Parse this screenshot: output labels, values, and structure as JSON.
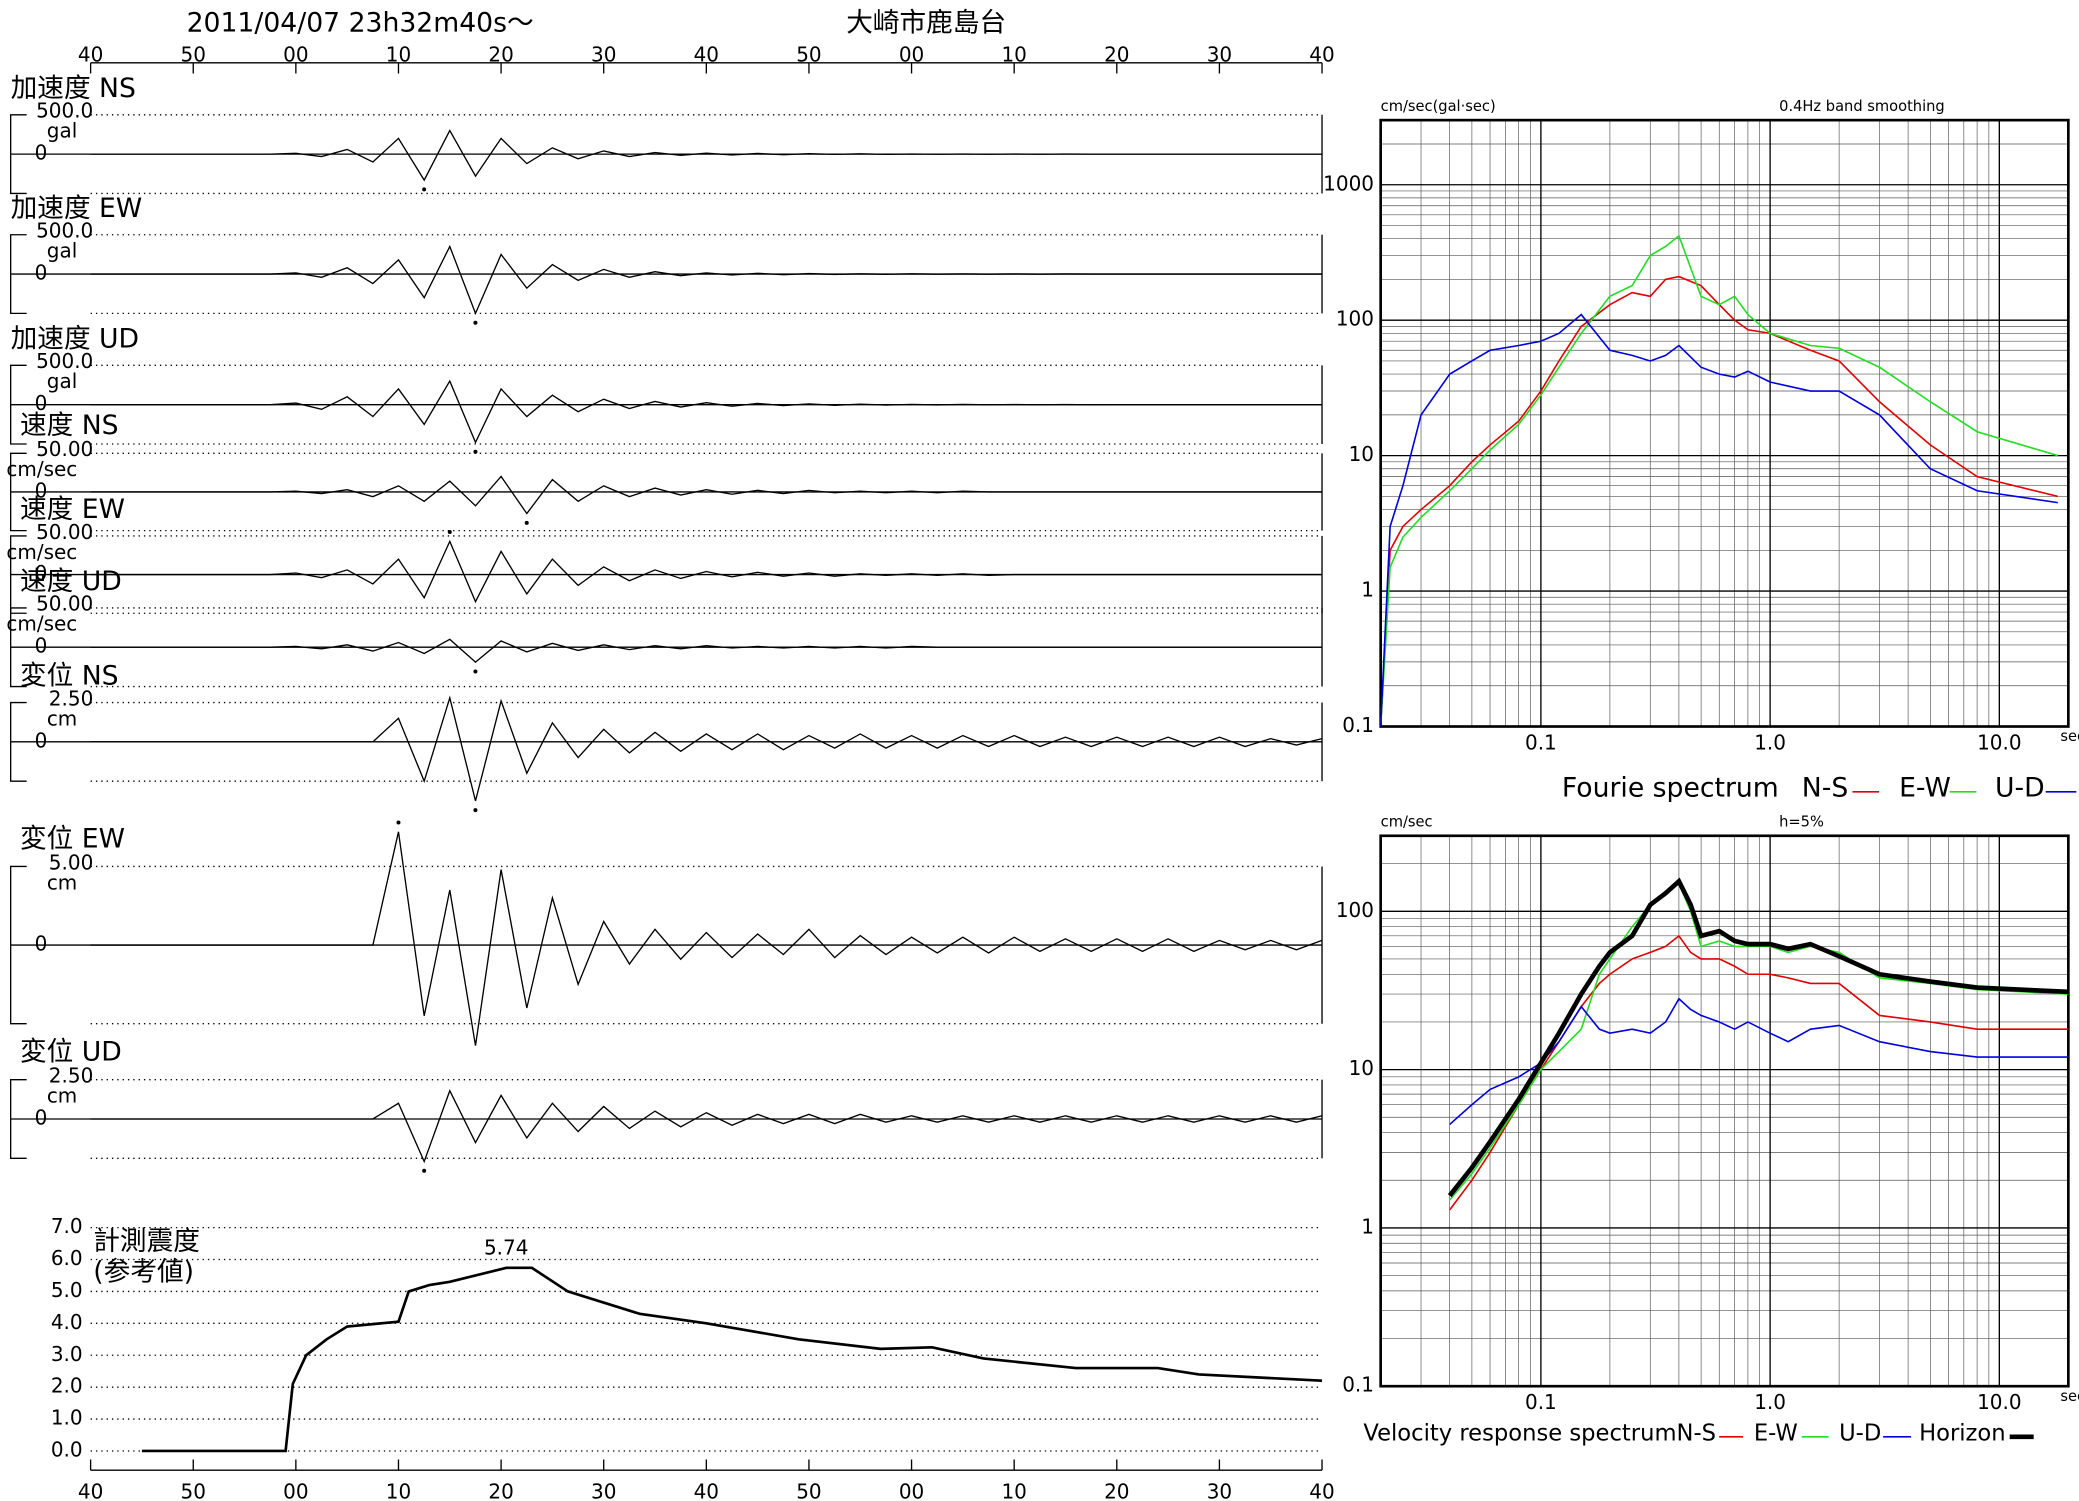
{
  "header": {
    "datetime": "2011/04/07  23h32m40s～",
    "station": "大崎市鹿島台"
  },
  "chart_data": [
    {
      "type": "waveform",
      "color": "#000000",
      "xlim": [
        0,
        120
      ],
      "xticks": [
        {
          "value": 0,
          "label": "40"
        },
        {
          "value": 10,
          "label": "50"
        },
        {
          "value": 20,
          "label": "00"
        },
        {
          "value": 30,
          "label": "10"
        },
        {
          "value": 40,
          "label": "20"
        },
        {
          "value": 50,
          "label": "30"
        },
        {
          "value": 60,
          "label": "40"
        },
        {
          "value": 70,
          "label": "50"
        },
        {
          "value": 80,
          "label": "00"
        },
        {
          "value": 90,
          "label": "10"
        },
        {
          "value": 100,
          "label": "20"
        },
        {
          "value": 110,
          "label": "30"
        },
        {
          "value": 120,
          "label": "40"
        }
      ],
      "x": [
        0,
        2.5,
        5,
        7.5,
        10,
        12.5,
        15,
        17.5,
        20,
        22.5,
        25,
        27.5,
        30,
        32.5,
        35,
        37.5,
        40,
        42.5,
        45,
        47.5,
        50,
        52.5,
        55,
        57.5,
        60,
        62.5,
        65,
        67.5,
        70,
        72.5,
        75,
        77.5,
        80,
        82.5,
        85,
        87.5,
        90,
        92.5,
        95,
        97.5,
        100,
        102.5,
        105,
        107.5,
        110,
        112.5,
        115,
        117.5,
        120
      ],
      "series": [
        {
          "name": "加速度 NS",
          "unit": "gal",
          "ylim": [
            -500,
            500
          ],
          "yticks": [
            0,
            {
              "value": 500,
              "label": "500.0"
            }
          ],
          "values": [
            0,
            0,
            0,
            0,
            0,
            0,
            0,
            0,
            10,
            -30,
            60,
            -100,
            200,
            -330,
            300,
            -280,
            200,
            -120,
            80,
            -60,
            40,
            -30,
            20,
            -15,
            12,
            -10,
            8,
            -6,
            5,
            -4,
            3,
            -3,
            2,
            -2,
            2,
            -1,
            1,
            -1,
            1,
            0,
            0,
            0,
            0,
            0,
            0,
            0,
            0,
            0,
            0
          ]
        },
        {
          "name": "加速度 EW",
          "unit": "gal",
          "ylim": [
            -500,
            500
          ],
          "yticks": [
            0,
            {
              "value": 500,
              "label": "500.0"
            }
          ],
          "values": [
            0,
            0,
            0,
            0,
            0,
            0,
            0,
            0,
            15,
            -40,
            80,
            -120,
            180,
            -300,
            350,
            -500,
            250,
            -180,
            120,
            -80,
            60,
            -40,
            30,
            -20,
            15,
            -12,
            10,
            -8,
            6,
            -5,
            4,
            -3,
            3,
            -2,
            2,
            -2,
            1,
            -1,
            1,
            0,
            0,
            0,
            0,
            0,
            0,
            0,
            0,
            0,
            0
          ]
        },
        {
          "name": "加速度 UD",
          "unit": "gal",
          "ylim": [
            -500,
            500
          ],
          "yticks": [
            0,
            {
              "value": 500,
              "label": "500.0"
            }
          ],
          "values": [
            0,
            0,
            0,
            0,
            0,
            0,
            0,
            0,
            20,
            -60,
            100,
            -150,
            200,
            -250,
            300,
            -480,
            200,
            -150,
            120,
            -90,
            70,
            -50,
            40,
            -30,
            25,
            -20,
            15,
            -12,
            10,
            -8,
            6,
            -5,
            4,
            -3,
            3,
            -2,
            2,
            -1,
            1,
            -1,
            0,
            0,
            0,
            0,
            0,
            0,
            0,
            0,
            0
          ]
        },
        {
          "name": "速度 NS",
          "unit": "cm/sec",
          "ylim": [
            -50,
            50
          ],
          "yticks": [
            0,
            {
              "value": 50,
              "label": "50.00"
            }
          ],
          "values": [
            0,
            0,
            0,
            0,
            0,
            0,
            0,
            0,
            1,
            -2,
            3,
            -6,
            8,
            -12,
            14,
            -18,
            20,
            -28,
            16,
            -12,
            8,
            -6,
            5,
            -4,
            3,
            -3,
            2,
            -2,
            2,
            -1,
            1,
            -1,
            1,
            -1,
            1,
            0,
            0,
            0,
            0,
            0,
            0,
            0,
            0,
            0,
            0,
            0,
            0,
            0,
            0
          ]
        },
        {
          "name": "速度 EW",
          "unit": "cm/sec",
          "ylim": [
            -50,
            50
          ],
          "yticks": [
            0,
            {
              "value": 50,
              "label": "50.00"
            }
          ],
          "values": [
            0,
            0,
            0,
            0,
            0,
            0,
            0,
            0,
            2,
            -4,
            6,
            -12,
            20,
            -30,
            43,
            -35,
            30,
            -25,
            20,
            -14,
            10,
            -8,
            6,
            -5,
            4,
            -3,
            3,
            -2,
            2,
            -2,
            1,
            -1,
            1,
            -1,
            1,
            -1,
            0,
            0,
            0,
            0,
            0,
            0,
            0,
            0,
            0,
            0,
            0,
            0,
            0
          ]
        },
        {
          "name": "速度 UD",
          "unit": "cm/sec",
          "ylim": [
            -50,
            50
          ],
          "yticks": [
            0,
            {
              "value": 50,
              "label": "50.00"
            }
          ],
          "values": [
            0,
            0,
            0,
            0,
            0,
            0,
            0,
            0,
            1,
            -2,
            3,
            -5,
            6,
            -8,
            10,
            -19,
            8,
            -6,
            5,
            -4,
            3,
            -3,
            2,
            -2,
            2,
            -1,
            1,
            -1,
            1,
            -1,
            1,
            -1,
            1,
            0,
            0,
            0,
            0,
            0,
            0,
            0,
            0,
            0,
            0,
            0,
            0,
            0,
            0,
            0,
            0
          ]
        },
        {
          "name": "変位 NS",
          "unit": "cm",
          "ylim": [
            -2.5,
            2.5
          ],
          "yticks": [
            0,
            {
              "value": 2.5,
              "label": "2.50"
            }
          ],
          "values": [
            0,
            0,
            0,
            0,
            0,
            0,
            0,
            0,
            0,
            0,
            0,
            0,
            1.5,
            -2.5,
            2.8,
            -3.75,
            2.6,
            -2.0,
            1.2,
            -1.0,
            0.8,
            -0.7,
            0.6,
            -0.6,
            0.5,
            -0.5,
            0.5,
            -0.5,
            0.4,
            -0.4,
            0.5,
            -0.4,
            0.4,
            -0.4,
            0.4,
            -0.3,
            0.4,
            -0.3,
            0.3,
            -0.3,
            0.3,
            -0.3,
            0.3,
            -0.3,
            0.3,
            -0.3,
            0.2,
            -0.2,
            0.2
          ]
        },
        {
          "name": "変位 EW",
          "unit": "cm",
          "ylim": [
            -5,
            5
          ],
          "yticks": [
            0,
            {
              "value": 5,
              "label": "5.00"
            }
          ],
          "values": [
            0,
            0,
            0,
            0,
            0,
            0,
            0,
            0,
            0,
            0,
            0,
            0,
            7.2,
            -4.5,
            3.5,
            -6.4,
            4.8,
            -4.0,
            3.0,
            -2.5,
            1.5,
            -1.2,
            1.0,
            -0.9,
            0.8,
            -0.8,
            0.7,
            -0.6,
            1.0,
            -0.8,
            0.6,
            -0.6,
            0.5,
            -0.5,
            0.5,
            -0.5,
            0.5,
            -0.4,
            0.4,
            -0.4,
            0.4,
            -0.4,
            0.4,
            -0.4,
            0.3,
            -0.3,
            0.3,
            -0.3,
            0.3
          ]
        },
        {
          "name": "変位 UD",
          "unit": "cm",
          "ylim": [
            -2.5,
            2.5
          ],
          "yticks": [
            0,
            {
              "value": 2.5,
              "label": "2.50"
            }
          ],
          "values": [
            0,
            0,
            0,
            0,
            0,
            0,
            0,
            0,
            0,
            0,
            0,
            0,
            1.0,
            -2.7,
            1.8,
            -1.5,
            1.5,
            -1.2,
            1.0,
            -0.8,
            0.8,
            -0.6,
            0.5,
            -0.5,
            0.4,
            -0.4,
            0.3,
            -0.3,
            0.3,
            -0.3,
            0.3,
            -0.2,
            0.2,
            -0.2,
            0.2,
            -0.2,
            0.2,
            -0.2,
            0.2,
            -0.2,
            0.2,
            -0.2,
            0.2,
            -0.2,
            0.2,
            -0.2,
            0.2,
            -0.2,
            0.2
          ]
        }
      ]
    },
    {
      "type": "line",
      "title": "計測震度",
      "subtitle": "(参考値)",
      "color": "#000000",
      "xlim": [
        0,
        120
      ],
      "ylim": [
        -0.6,
        7.0
      ],
      "xticks": [
        {
          "value": 0,
          "label": "40"
        },
        {
          "value": 10,
          "label": "50"
        },
        {
          "value": 20,
          "label": "00"
        },
        {
          "value": 30,
          "label": "10"
        },
        {
          "value": 40,
          "label": "20"
        },
        {
          "value": 50,
          "label": "30"
        },
        {
          "value": 60,
          "label": "40"
        },
        {
          "value": 70,
          "label": "50"
        },
        {
          "value": 80,
          "label": "00"
        },
        {
          "value": 90,
          "label": "10"
        },
        {
          "value": 100,
          "label": "20"
        },
        {
          "value": 110,
          "label": "30"
        },
        {
          "value": 120,
          "label": "40"
        }
      ],
      "yticks": [
        {
          "value": 0,
          "label": "0.0"
        },
        {
          "value": 1,
          "label": "1.0"
        },
        {
          "value": 2,
          "label": "2.0"
        },
        {
          "value": 3,
          "label": "3.0"
        },
        {
          "value": 4,
          "label": "4.0"
        },
        {
          "value": 5,
          "label": "5.0"
        },
        {
          "value": 6,
          "label": "6.0"
        },
        {
          "value": 7,
          "label": "7.0"
        }
      ],
      "x": [
        5,
        19,
        19.7,
        21,
        23,
        25,
        30,
        31,
        33,
        35,
        40.5,
        43,
        46.5,
        53.5,
        60,
        69,
        77,
        82,
        87,
        96,
        104,
        108,
        120
      ],
      "values": [
        0,
        0,
        2.1,
        3.0,
        3.5,
        3.9,
        4.05,
        5.0,
        5.2,
        5.3,
        5.74,
        5.74,
        5.0,
        4.3,
        4.0,
        3.5,
        3.2,
        3.25,
        2.9,
        2.6,
        2.6,
        2.4,
        2.2
      ],
      "annotation": {
        "x": 40.5,
        "y": 5.74,
        "label": "5.74"
      }
    },
    {
      "type": "line",
      "log_scale": true,
      "grid": true,
      "title": "Fourie spectrum",
      "y_label": "cm/sec(gal·sec)",
      "note": "0.4Hz band smoothing",
      "x_label": "sec",
      "xlim": [
        0.02,
        20
      ],
      "ylim": [
        0.1,
        3000
      ],
      "xticks": [
        0.1,
        {
          "value": 1,
          "label": "1.0"
        },
        {
          "value": 10,
          "label": "10.0"
        }
      ],
      "yticks": [
        0.1,
        1,
        10,
        100,
        1000
      ],
      "x": [
        0.02,
        0.022,
        0.025,
        0.03,
        0.04,
        0.05,
        0.06,
        0.08,
        0.1,
        0.12,
        0.15,
        0.2,
        0.25,
        0.3,
        0.35,
        0.4,
        0.5,
        0.6,
        0.7,
        0.8,
        1.0,
        1.5,
        2,
        3,
        5,
        8,
        18
      ],
      "series": [
        {
          "name": "N-S",
          "color": "#e00000",
          "values": [
            0.1,
            2,
            3,
            4,
            6,
            9,
            12,
            18,
            30,
            50,
            90,
            130,
            160,
            150,
            200,
            210,
            180,
            130,
            100,
            85,
            80,
            60,
            50,
            25,
            12,
            7,
            5
          ]
        },
        {
          "name": "E-W",
          "color": "#22dd22",
          "values": [
            0.1,
            1.5,
            2.5,
            3.5,
            5.5,
            8,
            11,
            17,
            28,
            45,
            80,
            150,
            180,
            300,
            350,
            420,
            150,
            130,
            150,
            110,
            80,
            65,
            62,
            45,
            25,
            15,
            10
          ]
        },
        {
          "name": "U-D",
          "color": "#0000dd",
          "values": [
            0.1,
            3,
            6,
            20,
            40,
            50,
            60,
            65,
            70,
            80,
            110,
            60,
            55,
            50,
            55,
            65,
            45,
            40,
            38,
            42,
            35,
            30,
            30,
            20,
            8,
            5.5,
            4.5
          ]
        }
      ]
    },
    {
      "type": "line",
      "log_scale": true,
      "grid": true,
      "title": "Velocity response spectrum",
      "y_label": "cm/sec",
      "note": "h=5%",
      "x_label": "sec",
      "xlim": [
        0.02,
        20
      ],
      "ylim": [
        0.1,
        300
      ],
      "xticks": [
        0.1,
        {
          "value": 1,
          "label": "1.0"
        },
        {
          "value": 10,
          "label": "10.0"
        }
      ],
      "yticks": [
        0.1,
        1,
        10,
        100
      ],
      "x": [
        0.04,
        0.05,
        0.06,
        0.08,
        0.1,
        0.12,
        0.15,
        0.18,
        0.2,
        0.25,
        0.3,
        0.35,
        0.4,
        0.45,
        0.5,
        0.6,
        0.7,
        0.8,
        1.0,
        1.2,
        1.5,
        2,
        3,
        5,
        8,
        20
      ],
      "series": [
        {
          "name": "N-S",
          "color": "#e00000",
          "values": [
            1.3,
            2,
            3,
            6,
            10,
            15,
            25,
            35,
            40,
            50,
            55,
            60,
            70,
            55,
            50,
            50,
            45,
            40,
            40,
            38,
            35,
            35,
            22,
            20,
            18,
            18
          ]
        },
        {
          "name": "E-W",
          "color": "#22dd22",
          "values": [
            1.5,
            2.2,
            3.2,
            6,
            10,
            13,
            18,
            40,
            50,
            80,
            110,
            130,
            150,
            100,
            60,
            65,
            60,
            60,
            60,
            55,
            60,
            55,
            38,
            35,
            32,
            30
          ]
        },
        {
          "name": "U-D",
          "color": "#0000dd",
          "values": [
            4.5,
            6,
            7.5,
            9,
            11,
            15,
            25,
            18,
            17,
            18,
            17,
            20,
            28,
            24,
            22,
            20,
            18,
            20,
            17,
            15,
            18,
            19,
            15,
            13,
            12,
            12
          ]
        },
        {
          "name": "Horizon",
          "color": "#000000",
          "values": [
            1.6,
            2.4,
            3.5,
            6.5,
            11,
            17,
            30,
            45,
            55,
            70,
            110,
            130,
            155,
            110,
            70,
            75,
            65,
            62,
            62,
            58,
            62,
            52,
            40,
            36,
            33,
            31
          ]
        }
      ]
    }
  ]
}
